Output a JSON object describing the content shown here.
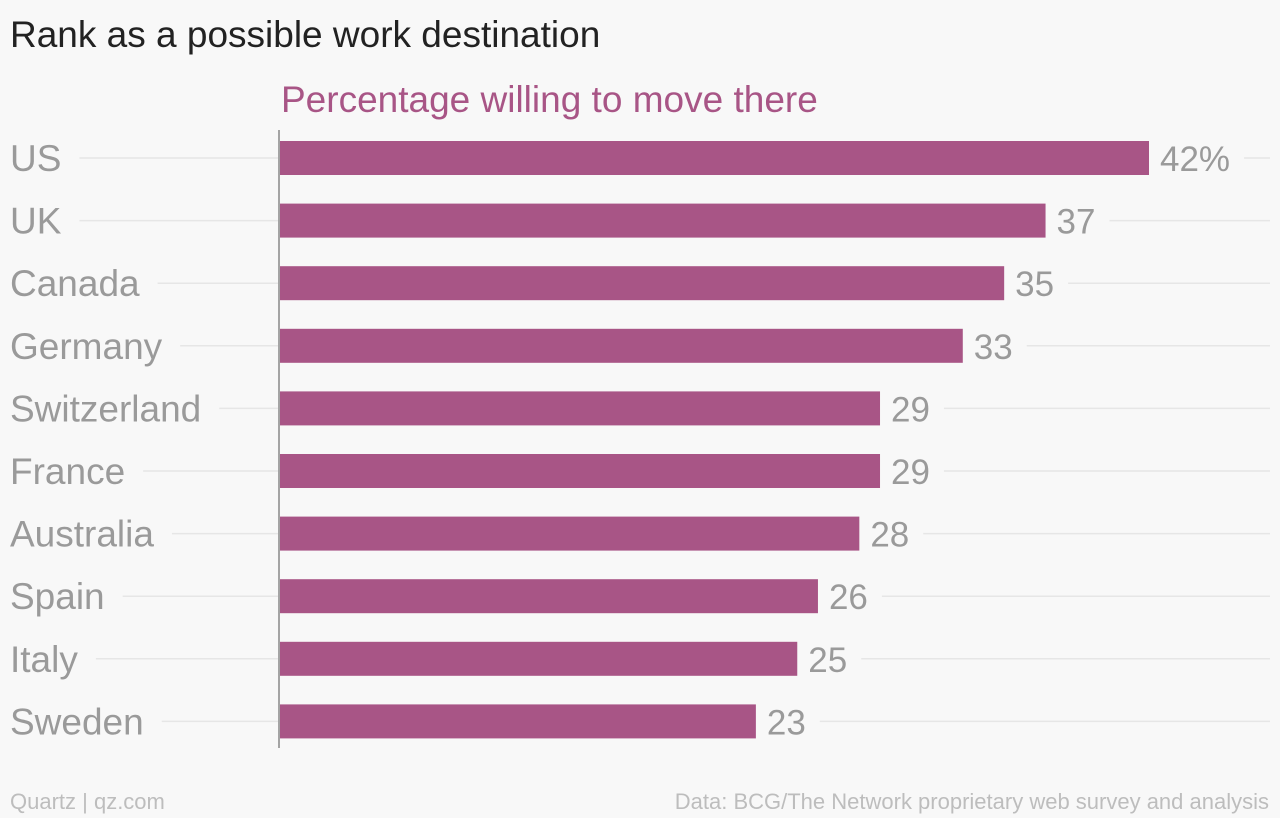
{
  "title": "Rank as a possible work destination",
  "footer": {
    "source_left": "Quartz | qz.com",
    "source_right": "Data: BCG/The Network proprietary web survey and analysis"
  },
  "colors": {
    "bar": "#a85586",
    "series_label": "#a85586",
    "category_label": "#9a9a9a",
    "value_label": "#9a9a9a",
    "gridline": "#e6e6e6",
    "axis": "#888888",
    "background": "#f8f8f8"
  },
  "chart_data": {
    "type": "bar",
    "orientation": "horizontal",
    "categories": [
      "US",
      "UK",
      "Canada",
      "Germany",
      "Switzerland",
      "France",
      "Australia",
      "Spain",
      "Italy",
      "Sweden"
    ],
    "series": [
      {
        "name": "Percentage willing to move there",
        "values": [
          42,
          37,
          35,
          33,
          29,
          29,
          28,
          26,
          25,
          23
        ]
      }
    ],
    "value_labels": [
      "42%",
      "37",
      "35",
      "33",
      "29",
      "29",
      "28",
      "26",
      "25",
      "23"
    ],
    "xlim": [
      0,
      42
    ],
    "grid": true,
    "legend": "top"
  }
}
